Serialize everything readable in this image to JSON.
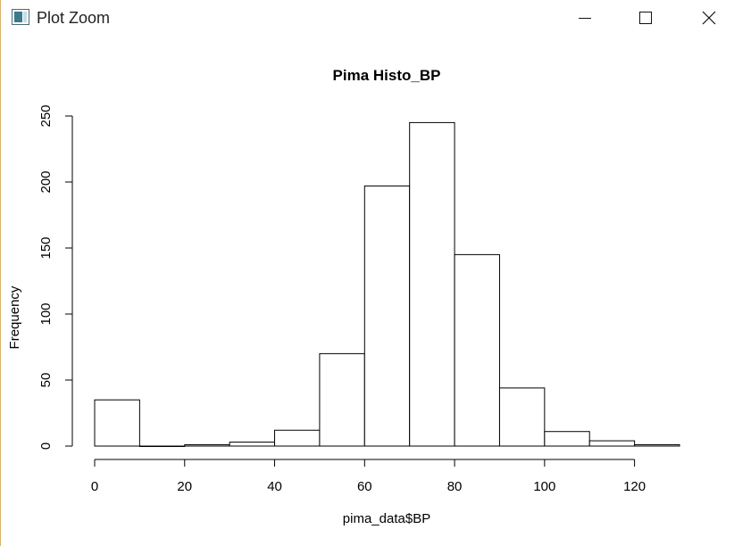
{
  "window": {
    "title": "Plot Zoom",
    "icon": "plot-window-icon",
    "controls": [
      "minimize-icon",
      "maximize-icon",
      "close-icon"
    ]
  },
  "chart_data": {
    "type": "bar",
    "title": "Pima Histo_BP",
    "xlabel": "pima_data$BP",
    "ylabel": "Frequency",
    "bins": [
      [
        0,
        10
      ],
      [
        10,
        20
      ],
      [
        20,
        30
      ],
      [
        30,
        40
      ],
      [
        40,
        50
      ],
      [
        50,
        60
      ],
      [
        60,
        70
      ],
      [
        70,
        80
      ],
      [
        80,
        90
      ],
      [
        90,
        100
      ],
      [
        100,
        110
      ],
      [
        110,
        120
      ],
      [
        120,
        130
      ]
    ],
    "values": [
      35,
      0,
      1,
      3,
      12,
      70,
      197,
      245,
      145,
      44,
      11,
      4,
      1
    ],
    "xlim": [
      0,
      130
    ],
    "ylim": [
      0,
      250
    ],
    "xticks": [
      0,
      20,
      40,
      60,
      80,
      100,
      120
    ],
    "yticks": [
      0,
      50,
      100,
      150,
      200,
      250
    ],
    "grid": false,
    "legend": "none"
  }
}
